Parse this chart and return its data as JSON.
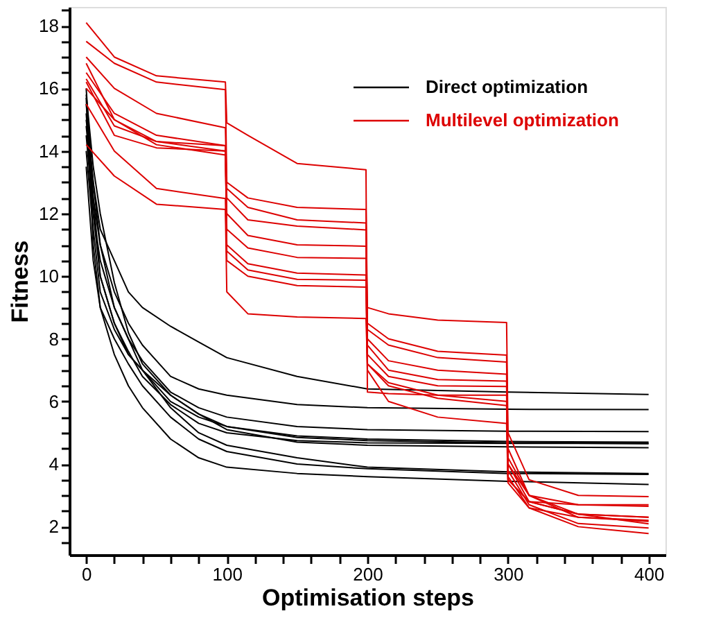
{
  "chart_data": {
    "type": "line",
    "xlabel": "Optimisation steps",
    "ylabel": "Fitness",
    "xlim": [
      -12,
      412
    ],
    "ylim": [
      1.1,
      18.6
    ],
    "xticks": [
      0,
      {
        "value": 20,
        "label": null
      },
      {
        "value": 40,
        "label": null
      },
      {
        "value": 60,
        "label": null
      },
      {
        "value": 80,
        "label": null
      },
      100,
      {
        "value": 120,
        "label": null
      },
      {
        "value": 140,
        "label": null
      },
      {
        "value": 160,
        "label": null
      },
      {
        "value": 180,
        "label": null
      },
      200,
      {
        "value": 220,
        "label": null
      },
      {
        "value": 240,
        "label": null
      },
      {
        "value": 260,
        "label": null
      },
      {
        "value": 280,
        "label": null
      },
      300,
      {
        "value": 320,
        "label": null
      },
      {
        "value": 340,
        "label": null
      },
      {
        "value": 360,
        "label": null
      },
      {
        "value": 380,
        "label": null
      },
      400
    ],
    "yticks": [
      {
        "value": 1.5,
        "label": null
      },
      2,
      {
        "value": 2.5,
        "label": null
      },
      {
        "value": 3,
        "label": null
      },
      {
        "value": 3.5,
        "label": null
      },
      4,
      {
        "value": 4.5,
        "label": null
      },
      {
        "value": 5,
        "label": null
      },
      {
        "value": 5.5,
        "label": null
      },
      6,
      {
        "value": 6.5,
        "label": null
      },
      {
        "value": 7,
        "label": null
      },
      {
        "value": 7.5,
        "label": null
      },
      8,
      {
        "value": 8.5,
        "label": null
      },
      {
        "value": 9,
        "label": null
      },
      {
        "value": 9.5,
        "label": null
      },
      10,
      {
        "value": 10.5,
        "label": null
      },
      {
        "value": 11,
        "label": null
      },
      {
        "value": 11.5,
        "label": null
      },
      12,
      {
        "value": 12.5,
        "label": null
      },
      {
        "value": 13,
        "label": null
      },
      {
        "value": 13.5,
        "label": null
      },
      14,
      {
        "value": 14.5,
        "label": null
      },
      {
        "value": 15,
        "label": null
      },
      {
        "value": 15.5,
        "label": null
      },
      16,
      {
        "value": 16.5,
        "label": null
      },
      {
        "value": 17,
        "label": null
      },
      {
        "value": 17.5,
        "label": null
      },
      18,
      {
        "value": 18.5,
        "label": null
      }
    ],
    "grid": false,
    "legend": "top right",
    "marker": "none",
    "line_style": "solid",
    "series": [
      {
        "name": "Direct optimization",
        "color": "#000000",
        "x": [
          0,
          5,
          10,
          20,
          30,
          40,
          60,
          80,
          100,
          150,
          200,
          300,
          400
        ],
        "values": [
          15.5,
          13,
          11.5,
          10.5,
          9.5,
          9,
          8.4,
          7.9,
          7.4,
          6.8,
          6.4,
          6.3,
          6.22
        ]
      },
      {
        "color": "#000000",
        "x": [
          0,
          5,
          10,
          20,
          30,
          40,
          60,
          80,
          100,
          150,
          200,
          300,
          400
        ],
        "values": [
          16,
          12.5,
          11,
          9.5,
          8.5,
          7.8,
          6.8,
          6.4,
          6.2,
          5.9,
          5.8,
          5.75,
          5.74
        ]
      },
      {
        "color": "#000000",
        "x": [
          0,
          5,
          10,
          20,
          30,
          40,
          60,
          80,
          100,
          150,
          200,
          300,
          400
        ],
        "values": [
          15,
          13,
          11,
          9,
          8,
          7.3,
          6.3,
          5.8,
          5.5,
          5.2,
          5.1,
          5.05,
          5.04
        ]
      },
      {
        "color": "#000000",
        "x": [
          0,
          5,
          10,
          20,
          30,
          40,
          60,
          80,
          100,
          150,
          200,
          300,
          400
        ],
        "values": [
          14.5,
          12,
          10,
          8.5,
          7.5,
          7,
          6,
          5.5,
          5.2,
          4.9,
          4.8,
          4.72,
          4.7
        ]
      },
      {
        "color": "#000000",
        "x": [
          0,
          5,
          10,
          20,
          30,
          40,
          60,
          80,
          100,
          150,
          200,
          300,
          400
        ],
        "values": [
          15.8,
          13.5,
          12,
          9.8,
          8.2,
          7.2,
          6.2,
          5.6,
          5.2,
          4.85,
          4.75,
          4.68,
          4.65
        ]
      },
      {
        "color": "#000000",
        "x": [
          0,
          5,
          10,
          20,
          30,
          40,
          60,
          80,
          100,
          150,
          200,
          300,
          400
        ],
        "values": [
          14,
          11.5,
          9.5,
          8.3,
          7.5,
          7,
          6.2,
          5.6,
          5.1,
          4.7,
          4.6,
          4.55,
          4.52
        ]
      },
      {
        "color": "#000000",
        "x": [
          0,
          5,
          10,
          20,
          30,
          40,
          60,
          80,
          100,
          150,
          200,
          300,
          400
        ],
        "values": [
          15.2,
          12,
          10.5,
          9,
          8,
          7,
          5.8,
          5,
          4.6,
          4.2,
          3.9,
          3.75,
          3.7
        ]
      },
      {
        "color": "#000000",
        "x": [
          0,
          5,
          10,
          20,
          30,
          40,
          60,
          80,
          100,
          150,
          200,
          300,
          400
        ],
        "values": [
          13.5,
          10.5,
          9,
          8,
          7.2,
          6.5,
          5.5,
          4.8,
          4.4,
          4,
          3.85,
          3.7,
          3.67
        ]
      },
      {
        "color": "#000000",
        "x": [
          0,
          5,
          10,
          20,
          30,
          40,
          60,
          80,
          100,
          150,
          200,
          300,
          400
        ],
        "values": [
          15.7,
          11,
          9,
          7.5,
          6.5,
          5.8,
          4.8,
          4.2,
          3.9,
          3.7,
          3.6,
          3.45,
          3.35
        ]
      },
      {
        "color": "#000000",
        "x": [
          0,
          5,
          10,
          20,
          30,
          40,
          60,
          80,
          100,
          150,
          200,
          300,
          400
        ],
        "values": [
          14.8,
          12.5,
          10,
          8.5,
          7.6,
          6.8,
          5.9,
          5.3,
          5,
          4.75,
          4.68,
          4.66,
          4.66
        ]
      },
      {
        "name": "Multilevel optimization",
        "color": "#dd0000",
        "x": [
          0,
          20,
          50,
          99,
          100,
          115,
          150,
          199,
          200,
          215,
          250,
          299,
          300,
          315,
          350,
          400
        ],
        "values": [
          18.1,
          17,
          16.4,
          16.2,
          14.9,
          14.5,
          13.6,
          13.4,
          6.3,
          6.25,
          6.2,
          6.2,
          4,
          3,
          2.7,
          2.65
        ]
      },
      {
        "color": "#dd0000",
        "x": [
          0,
          20,
          50,
          99,
          100,
          115,
          150,
          199,
          200,
          215,
          250,
          299,
          300,
          315,
          350,
          400
        ],
        "values": [
          17.5,
          16.8,
          16.2,
          15.96,
          13,
          12.5,
          12.2,
          12.13,
          9,
          8.8,
          8.6,
          8.52,
          5,
          3.5,
          3,
          2.96
        ]
      },
      {
        "color": "#dd0000",
        "x": [
          0,
          20,
          50,
          99,
          100,
          115,
          150,
          199,
          200,
          215,
          250,
          299,
          300,
          315,
          350,
          400
        ],
        "values": [
          17,
          16,
          15.2,
          14.74,
          12.8,
          12.2,
          11.8,
          11.7,
          8.5,
          8,
          7.6,
          7.48,
          4.5,
          3,
          2.4,
          2.3
        ]
      },
      {
        "color": "#dd0000",
        "x": [
          0,
          20,
          50,
          99,
          100,
          115,
          150,
          199,
          200,
          215,
          250,
          299,
          300,
          315,
          350,
          400
        ],
        "values": [
          16.5,
          15.2,
          14.5,
          14.17,
          12.5,
          11.8,
          11.6,
          11.48,
          8.3,
          7.8,
          7.4,
          7.26,
          4.2,
          3,
          2.3,
          2.17
        ]
      },
      {
        "color": "#dd0000",
        "x": [
          0,
          20,
          50,
          99,
          100,
          115,
          150,
          199,
          200,
          215,
          250,
          299,
          300,
          315,
          350,
          400
        ],
        "values": [
          16,
          15,
          14.3,
          14,
          12,
          11.3,
          11,
          10.96,
          8,
          7.3,
          7,
          6.87,
          4,
          2.8,
          2.4,
          2.09
        ]
      },
      {
        "color": "#dd0000",
        "x": [
          0,
          20,
          50,
          99,
          100,
          115,
          150,
          199,
          200,
          215,
          250,
          299,
          300,
          315,
          350,
          400
        ],
        "values": [
          16.8,
          15,
          14.2,
          13.87,
          11.5,
          10.9,
          10.6,
          10.57,
          7.8,
          7,
          6.7,
          6.65,
          3.8,
          2.7,
          2.1,
          1.96
        ]
      },
      {
        "color": "#dd0000",
        "x": [
          0,
          20,
          50,
          99,
          100,
          115,
          150,
          199,
          200,
          215,
          250,
          299,
          300,
          315,
          350,
          400
        ],
        "values": [
          16.3,
          14.8,
          14.3,
          14.17,
          11,
          10.4,
          10.1,
          10.04,
          7.5,
          6.8,
          6.5,
          6.48,
          3.6,
          2.6,
          2,
          1.78
        ]
      },
      {
        "color": "#dd0000",
        "x": [
          0,
          20,
          50,
          99,
          100,
          115,
          150,
          199,
          200,
          215,
          250,
          299,
          300,
          315,
          350,
          400
        ],
        "values": [
          16.2,
          14.5,
          14.1,
          14,
          10.8,
          10.2,
          9.9,
          9.87,
          7.2,
          6.5,
          6.1,
          5.87,
          3.5,
          2.8,
          2.7,
          2.7
        ]
      },
      {
        "color": "#dd0000",
        "x": [
          0,
          20,
          50,
          99,
          100,
          115,
          150,
          199,
          200,
          215,
          250,
          299,
          300,
          315,
          350,
          400
        ],
        "values": [
          15.5,
          14,
          12.8,
          12.48,
          10.5,
          10,
          9.7,
          9.65,
          7,
          6,
          5.5,
          5.3,
          3.4,
          2.6,
          2.3,
          2.2
        ]
      },
      {
        "color": "#dd0000",
        "x": [
          0,
          20,
          50,
          99,
          100,
          115,
          150,
          199,
          200,
          215,
          250,
          299,
          300,
          315,
          350,
          400
        ],
        "values": [
          14.2,
          13.2,
          12.3,
          12.13,
          9.5,
          8.8,
          8.7,
          8.65,
          7.2,
          6.6,
          6.2,
          6,
          3.5,
          2.8,
          2.4,
          2.3
        ]
      }
    ]
  }
}
